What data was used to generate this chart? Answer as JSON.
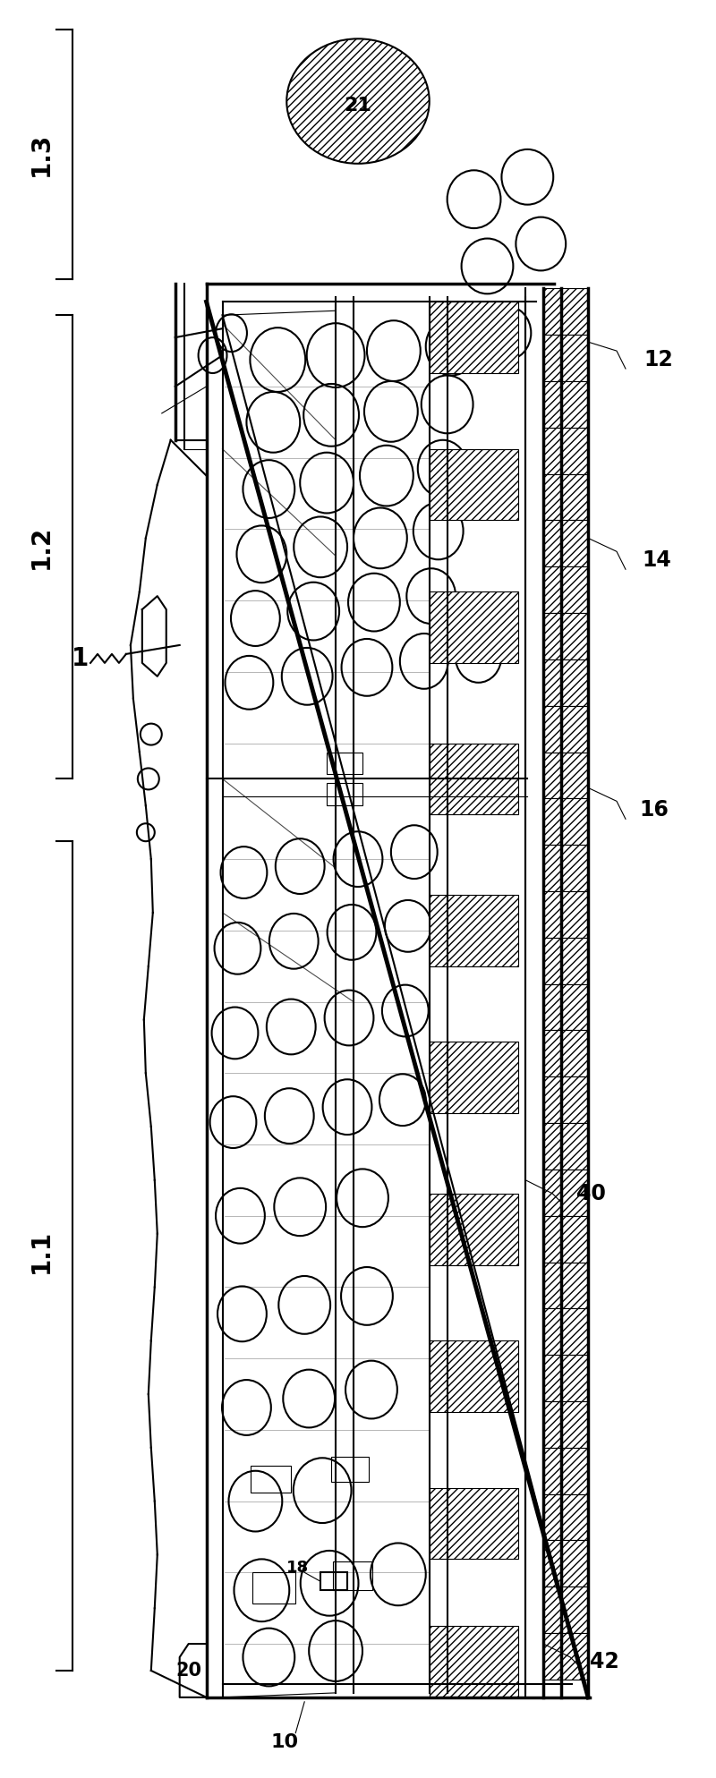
{
  "background_color": "#ffffff",
  "fig_width": 8.0,
  "fig_height": 19.87,
  "labels": {
    "1_3": "1.3",
    "1_2": "1.2",
    "1_1": "1.1",
    "1": "1",
    "10": "10",
    "12": "12",
    "14": "14",
    "16": "16",
    "18": "18",
    "20": "20",
    "21": "21",
    "40": "40",
    "42": "42"
  },
  "lw_thin": 0.8,
  "lw_med": 1.5,
  "lw_thick": 2.5,
  "lw_bold": 3.5
}
